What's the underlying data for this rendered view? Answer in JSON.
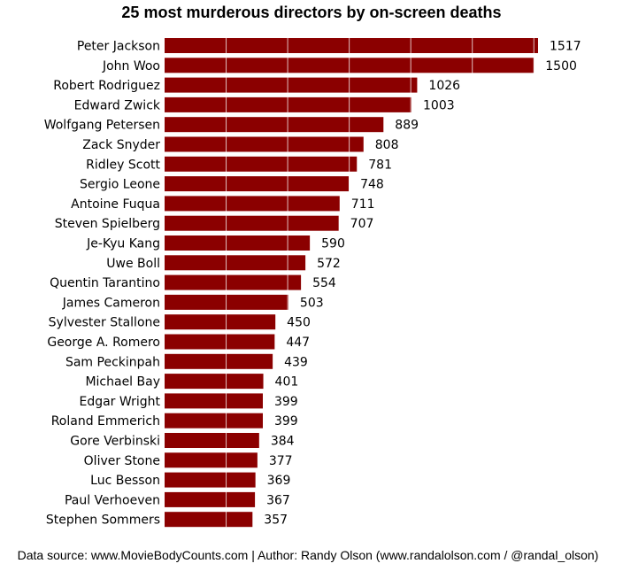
{
  "chart_data": {
    "type": "bar",
    "orientation": "horizontal",
    "title": "25 most murderous directors by on-screen deaths",
    "categories": [
      "Peter Jackson",
      "John Woo",
      "Robert Rodriguez",
      "Edward Zwick",
      "Wolfgang Petersen",
      "Zack Snyder",
      "Ridley Scott",
      "Sergio Leone",
      "Antoine Fuqua",
      "Steven Spielberg",
      "Je-Kyu Kang",
      "Uwe Boll",
      "Quentin Tarantino",
      "James Cameron",
      "Sylvester Stallone",
      "George A. Romero",
      "Sam Peckinpah",
      "Michael Bay",
      "Edgar Wright",
      "Roland Emmerich",
      "Gore Verbinski",
      "Oliver Stone",
      "Luc Besson",
      "Paul Verhoeven",
      "Stephen Sommers"
    ],
    "values": [
      1517,
      1500,
      1026,
      1003,
      889,
      808,
      781,
      748,
      711,
      707,
      590,
      572,
      554,
      503,
      450,
      447,
      439,
      401,
      399,
      399,
      384,
      377,
      369,
      367,
      357
    ],
    "xlim": [
      0,
      1517
    ],
    "grid": "vertical-white",
    "bar_color": "#8b0000",
    "footer": "Data source: www.MovieBodyCounts.com | Author: Randy Olson (www.randalolson.com / @randal_olson)"
  }
}
